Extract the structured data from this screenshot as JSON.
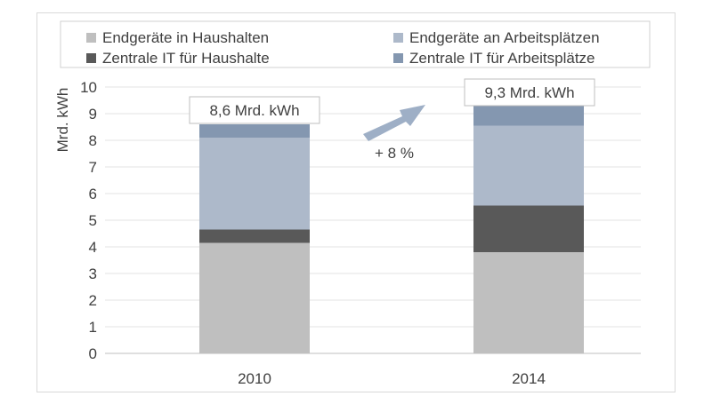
{
  "chart_data": {
    "type": "bar",
    "stacked": true,
    "title": "",
    "xlabel": "",
    "ylabel": "Mrd. kWh",
    "ylim": [
      0,
      10
    ],
    "yticks": [
      "0",
      "1",
      "2",
      "3",
      "4",
      "5",
      "6",
      "7",
      "8",
      "9",
      "10"
    ],
    "categories": [
      "2010",
      "2014"
    ],
    "series": [
      {
        "name": "Endgeräte in Haushalten",
        "color": "#bfbfbf",
        "values": [
          4.15,
          3.8
        ]
      },
      {
        "name": "Zentrale IT für Haushalte",
        "color": "#595959",
        "values": [
          0.5,
          1.75
        ]
      },
      {
        "name": "Endgeräte an Arbeitsplätzen",
        "color": "#adb9ca",
        "values": [
          3.45,
          3.0
        ]
      },
      {
        "name": "Zentrale IT für Arbeitsplätze",
        "color": "#8497b0",
        "values": [
          0.5,
          0.75
        ]
      }
    ],
    "totals": [
      "8,6 Mrd. kWh",
      "9,3 Mrd. kWh"
    ],
    "growth_label": "+ 8 %",
    "grid": true,
    "legend_position": "top"
  }
}
